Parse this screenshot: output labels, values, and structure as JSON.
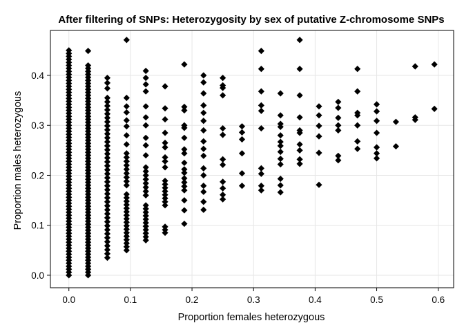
{
  "chart_data": {
    "type": "scatter",
    "title": "After filtering of SNPs: Heterozygosity by sex of putative Z-chromosome SNPs",
    "xlabel": "Proportion females heterozygous",
    "ylabel": "Proportion males heterozygous",
    "xlim": [
      -0.03,
      0.625
    ],
    "ylim": [
      -0.025,
      0.49
    ],
    "xticks": [
      0.0,
      0.1,
      0.2,
      0.3,
      0.4,
      0.5,
      0.6
    ],
    "yticks": [
      0.0,
      0.1,
      0.2,
      0.3,
      0.4
    ],
    "xtick_labels": [
      "0.0",
      "0.1",
      "0.2",
      "0.3",
      "0.4",
      "0.5",
      "0.6"
    ],
    "ytick_labels": [
      "0.0",
      "0.1",
      "0.2",
      "0.3",
      "0.4"
    ],
    "grid": true,
    "marker": "diamond",
    "marker_color": "#000000",
    "series": [
      {
        "columns": [
          {
            "x": 0.0,
            "ranges": [
              [
                0.0,
                0.455,
                0.006
              ]
            ]
          },
          {
            "x": 0.03125,
            "ranges": [
              [
                0.0,
                0.423,
                0.006
              ]
            ],
            "points": [
              0.449
            ]
          },
          {
            "x": 0.0625,
            "ranges": [
              [
                0.035,
                0.36,
                0.008
              ]
            ],
            "points": [
              0.374,
              0.385,
              0.395
            ]
          },
          {
            "x": 0.09375,
            "ranges": [
              [
                0.05,
                0.165,
                0.007
              ],
              [
                0.18,
                0.245,
                0.008
              ]
            ],
            "points": [
              0.262,
              0.28,
              0.298,
              0.31,
              0.326,
              0.338,
              0.355,
              0.471
            ]
          },
          {
            "x": 0.125,
            "ranges": [
              [
                0.07,
                0.145,
                0.007
              ],
              [
                0.16,
                0.22,
                0.008
              ]
            ],
            "points": [
              0.24,
              0.26,
              0.275,
              0.3,
              0.316,
              0.338,
              0.368,
              0.382,
              0.395,
              0.409
            ]
          },
          {
            "x": 0.15625,
            "ranges": [
              [
                0.085,
                0.1,
                0.006
              ],
              [
                0.14,
                0.195,
                0.007
              ]
            ],
            "points": [
              0.216,
              0.228,
              0.236,
              0.256,
              0.265,
              0.285,
              0.312,
              0.334,
              0.378
            ]
          },
          {
            "x": 0.1875,
            "ranges": [
              [
                0.17,
                0.196,
                0.008
              ]
            ],
            "points": [
              0.103,
              0.13,
              0.15,
              0.205,
              0.212,
              0.225,
              0.244,
              0.252,
              0.275,
              0.295,
              0.3,
              0.33,
              0.337,
              0.422
            ]
          },
          {
            "x": 0.21875,
            "points": [
              0.131,
              0.147,
              0.167,
              0.179,
              0.2,
              0.214,
              0.239,
              0.253,
              0.268,
              0.29,
              0.309,
              0.325,
              0.34,
              0.364,
              0.386,
              0.4
            ]
          },
          {
            "x": 0.25,
            "points": [
              0.152,
              0.161,
              0.174,
              0.187,
              0.221,
              0.232,
              0.281,
              0.294,
              0.36,
              0.375,
              0.38,
              0.395
            ]
          },
          {
            "x": 0.28125,
            "points": [
              0.179,
              0.204,
              0.244,
              0.272,
              0.286,
              0.298
            ]
          },
          {
            "x": 0.3125,
            "points": [
              0.17,
              0.179,
              0.203,
              0.214,
              0.294,
              0.329,
              0.34,
              0.368,
              0.413,
              0.449
            ]
          },
          {
            "x": 0.34375,
            "points": [
              0.166,
              0.18,
              0.193,
              0.222,
              0.233,
              0.247,
              0.259,
              0.267,
              0.28,
              0.297,
              0.303,
              0.32,
              0.364
            ]
          },
          {
            "x": 0.375,
            "points": [
              0.223,
              0.232,
              0.25,
              0.262,
              0.285,
              0.29,
              0.316,
              0.36,
              0.413,
              0.471
            ]
          },
          {
            "x": 0.40625,
            "points": [
              0.181,
              0.245,
              0.278,
              0.299,
              0.32,
              0.338
            ]
          },
          {
            "x": 0.4375,
            "points": [
              0.23,
              0.239,
              0.29,
              0.3,
              0.315,
              0.335,
              0.347
            ]
          },
          {
            "x": 0.46875,
            "points": [
              0.253,
              0.268,
              0.3,
              0.32,
              0.325,
              0.368,
              0.413
            ]
          },
          {
            "x": 0.5,
            "points": [
              0.234,
              0.244,
              0.256,
              0.285,
              0.309,
              0.328,
              0.342
            ]
          },
          {
            "x": 0.53125,
            "points": [
              0.258,
              0.307
            ]
          },
          {
            "x": 0.5625,
            "points": [
              0.316
            ]
          },
          {
            "x": 0.5625,
            "points": [
              0.311,
              0.418
            ]
          },
          {
            "x": 0.59375,
            "points": [
              0.333,
              0.422
            ]
          }
        ]
      }
    ]
  }
}
